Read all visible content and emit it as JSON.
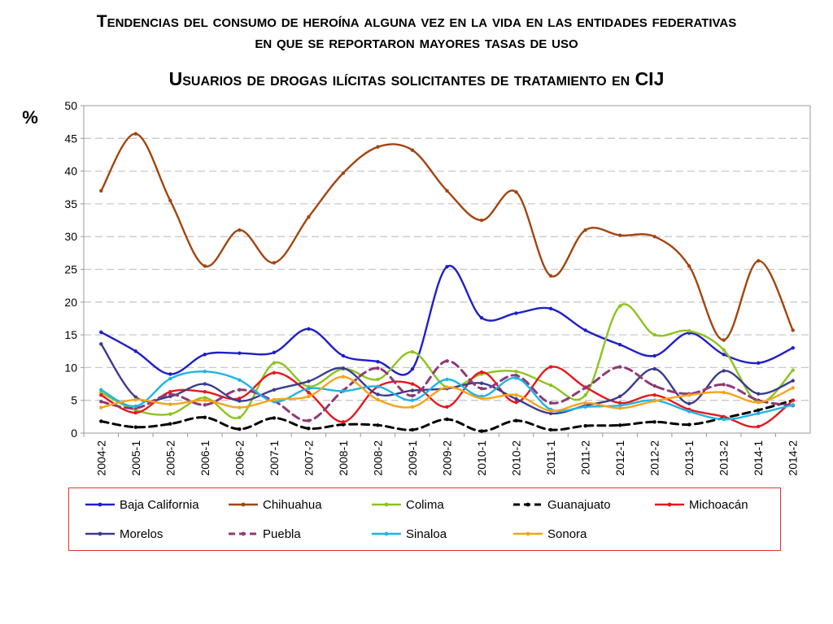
{
  "title_line1": "Tendencias del consumo de heroína alguna vez en la vida en las entidades federativas",
  "title_line2": "en que se reportaron mayores tasas de uso",
  "subtitle": "Usuarios de drogas ilícitas solicitantes de tratamiento en CIJ",
  "chart_data": {
    "type": "line",
    "ylabel": "%",
    "ylim": [
      0,
      50
    ],
    "yticks": [
      "0",
      "5",
      "10",
      "15",
      "20",
      "25",
      "30",
      "35",
      "40",
      "45",
      "50"
    ],
    "grid": true,
    "legend_position": "bottom",
    "categories": [
      "2004-2",
      "2005-1",
      "2005-2",
      "2006-1",
      "2006-2",
      "2007-1",
      "2007-2",
      "2008-1",
      "2008-2",
      "2009-1",
      "2009-2",
      "2010-1",
      "2010-2",
      "2011-1",
      "2011-2",
      "2012-1",
      "2012-2",
      "2013-1",
      "2013-2",
      "2014-1",
      "2014-2"
    ],
    "series": [
      {
        "name": "Baja California",
        "color": "#1f1fc8",
        "dash": "solid",
        "values": [
          15.4,
          12.5,
          9.0,
          12.0,
          12.2,
          12.3,
          15.9,
          11.8,
          10.9,
          9.8,
          25.4,
          17.6,
          18.3,
          19.0,
          15.7,
          13.5,
          11.8,
          15.3,
          12.0,
          10.7,
          13.0
        ]
      },
      {
        "name": "Chihuahua",
        "color": "#a2450f",
        "dash": "solid",
        "values": [
          37.0,
          45.7,
          35.5,
          25.5,
          31.0,
          26.0,
          33.0,
          39.7,
          43.7,
          43.2,
          37.0,
          32.5,
          36.8,
          24.0,
          31.0,
          30.2,
          30.0,
          25.5,
          14.2,
          26.3,
          15.7
        ]
      },
      {
        "name": "Colima",
        "color": "#8cc41e",
        "dash": "solid",
        "values": [
          6.2,
          3.5,
          2.9,
          5.4,
          2.4,
          10.7,
          7.1,
          9.8,
          8.2,
          12.4,
          7.0,
          9.0,
          9.4,
          7.3,
          5.8,
          19.4,
          15.0,
          15.6,
          12.7,
          4.7,
          9.6
        ]
      },
      {
        "name": "Guanajuato",
        "color": "#000000",
        "dash": "dashed",
        "values": [
          1.8,
          0.9,
          1.4,
          2.4,
          0.6,
          2.3,
          0.7,
          1.3,
          1.2,
          0.5,
          2.1,
          0.3,
          1.9,
          0.5,
          1.1,
          1.2,
          1.7,
          1.3,
          2.3,
          3.5,
          5.0
        ]
      },
      {
        "name": "Michoacán",
        "color": "#e8161c",
        "dash": "solid",
        "values": [
          5.8,
          3.1,
          6.3,
          6.3,
          5.3,
          9.2,
          6.2,
          1.7,
          7.1,
          7.5,
          4.0,
          9.3,
          4.7,
          10.1,
          7.0,
          4.6,
          5.8,
          3.6,
          2.5,
          1.0,
          5.0
        ]
      },
      {
        "name": "Morelos",
        "color": "#3b3b8f",
        "dash": "solid",
        "values": [
          13.6,
          5.5,
          5.6,
          7.5,
          4.9,
          6.6,
          7.9,
          9.9,
          5.9,
          6.5,
          6.8,
          7.6,
          5.2,
          3.0,
          4.2,
          5.6,
          9.8,
          4.5,
          9.5,
          6.0,
          8.0
        ]
      },
      {
        "name": "Puebla",
        "color": "#8e3a76",
        "dash": "dashed",
        "values": [
          4.8,
          3.8,
          5.9,
          4.3,
          6.6,
          4.9,
          1.9,
          6.5,
          9.9,
          5.7,
          11.0,
          6.8,
          8.8,
          4.6,
          6.9,
          10.1,
          7.2,
          6.0,
          7.4,
          5.0,
          4.2
        ]
      },
      {
        "name": "Sinaloa",
        "color": "#1eb4e6",
        "dash": "solid",
        "values": [
          6.6,
          4.1,
          8.3,
          9.4,
          8.1,
          4.8,
          6.8,
          6.4,
          7.1,
          5.0,
          8.2,
          5.6,
          8.4,
          3.6,
          4.0,
          4.2,
          5.0,
          3.3,
          2.1,
          3.0,
          4.3
        ]
      },
      {
        "name": "Sonora",
        "color": "#f5a31a",
        "dash": "solid",
        "values": [
          3.9,
          5.1,
          4.4,
          5.0,
          3.9,
          5.1,
          5.6,
          8.6,
          5.1,
          4.0,
          7.0,
          5.3,
          5.8,
          3.4,
          4.6,
          3.8,
          4.9,
          5.8,
          6.2,
          4.7,
          6.9
        ]
      }
    ]
  }
}
